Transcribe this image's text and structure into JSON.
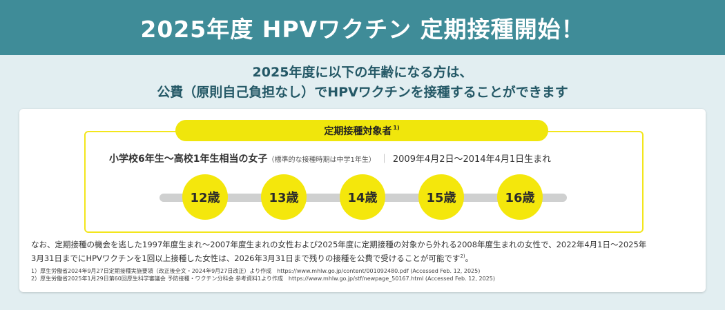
{
  "banner": {
    "title": "2025年度 HPVワクチン 定期接種開始！"
  },
  "subtitle": {
    "line1": "2025年度に以下の年齢になる方は、",
    "line2": "公費（原則自己負担なし）でHPVワクチンを接種することができます"
  },
  "target": {
    "label": "定期接種対象者",
    "label_ref": "1)",
    "who": "小学校6年生～高校1年生相当の女子",
    "who_note": "（標準的な接種時期は中学1年生）",
    "separator": "｜",
    "birth_range": "2009年4月2日～2014年4月1日生まれ"
  },
  "ages": [
    "12歳",
    "13歳",
    "14歳",
    "15歳",
    "16歳"
  ],
  "note": {
    "line1": "なお、定期接種の機会を逃した1997年度生まれ～2007年度生まれの女性および2025年度に定期接種の対象から外れる2008年度生まれの女性で、2022年4月1日～2025年",
    "line2": "3月31日までにHPVワクチンを1回以上接種した女性は、2026年3月31日まで残りの接種を公費で受けることが可能です",
    "line2_ref": "2)",
    "line2_end": "。"
  },
  "footnotes": [
    "1）厚生労働省2024年9月27日定期接種実施要領（改正後全文・2024年9月27日改正）より作成　https://www.mhlw.go.jp/content/001092480.pdf (Accessed Feb. 12, 2025)",
    "2）厚生労働省2025年1月29日第60回厚生科学審議会 予防接種・ワクチン分科会 参考資料1より作成　https://www.mhlw.go.jp/stf/newpage_50167.html (Accessed Feb. 12, 2025)"
  ],
  "colors": {
    "banner": "#3f8c98",
    "background": "#e2eef1",
    "accent_yellow": "#f0e60c",
    "heading_text": "#245866"
  }
}
